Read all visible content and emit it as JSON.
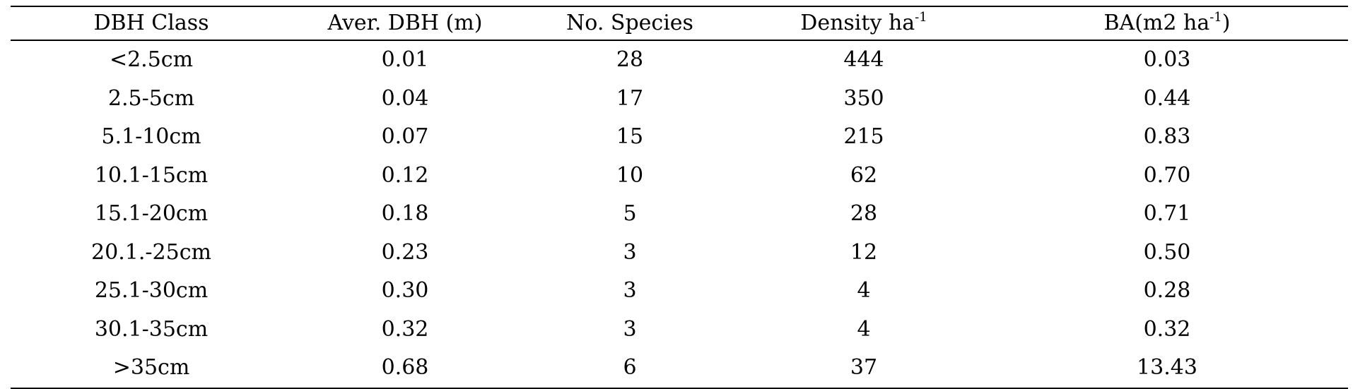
{
  "table": {
    "headers": [
      {
        "text": "DBH Class",
        "sup": ""
      },
      {
        "text": "Aver. DBH (m)",
        "sup": ""
      },
      {
        "text": "No. Species",
        "sup": ""
      },
      {
        "text": "Density ha",
        "sup": "-1",
        "after": ""
      },
      {
        "text": "BA(m2 ha",
        "sup": "-1",
        "after": ")"
      }
    ],
    "rows": [
      [
        "<2.5cm",
        "0.01",
        "28",
        "444",
        "0.03"
      ],
      [
        "2.5-5cm",
        "0.04",
        "17",
        "350",
        "0.44"
      ],
      [
        "5.1-10cm",
        "0.07",
        "15",
        "215",
        "0.83"
      ],
      [
        "10.1-15cm",
        "0.12",
        "10",
        "62",
        "0.70"
      ],
      [
        "15.1-20cm",
        "0.18",
        "5",
        "28",
        "0.71"
      ],
      [
        "20.1.-25cm",
        "0.23",
        "3",
        "12",
        "0.50"
      ],
      [
        "25.1-30cm",
        "0.30",
        "3",
        "4",
        "0.28"
      ],
      [
        "30.1-35cm",
        "0.32",
        "3",
        "4",
        "0.32"
      ],
      [
        ">35cm",
        "0.68",
        "6",
        "37",
        "13.43"
      ]
    ]
  }
}
